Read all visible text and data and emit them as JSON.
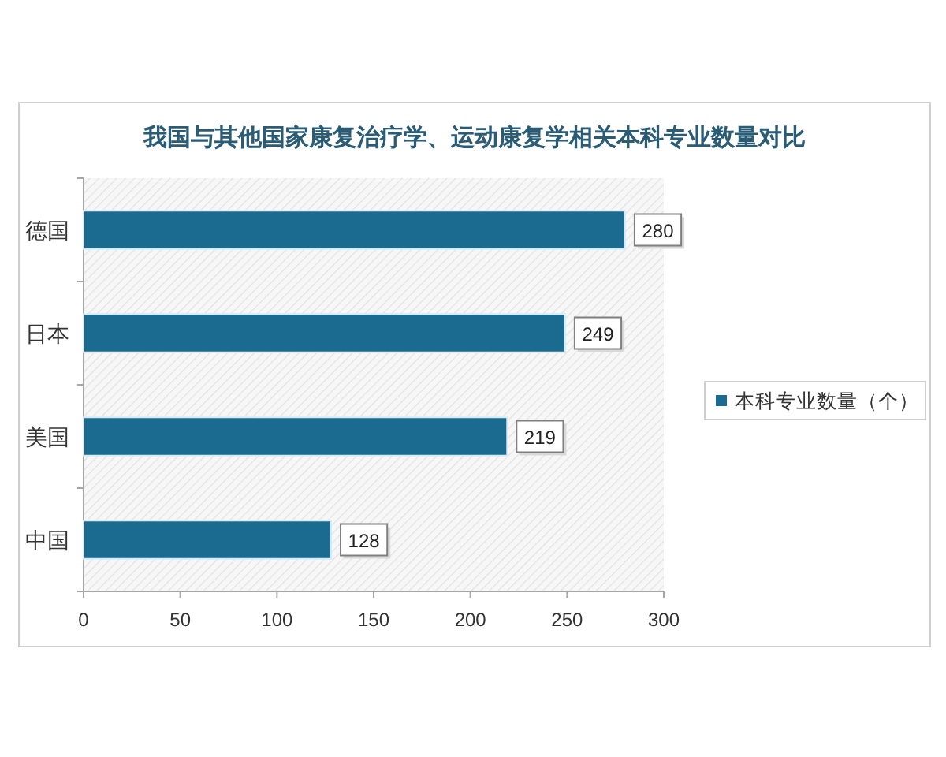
{
  "chart_data": {
    "type": "bar",
    "orientation": "horizontal",
    "title": "我国与其他国家康复治疗学、运动康复学相关本科专业数量对比",
    "categories": [
      "德国",
      "日本",
      "美国",
      "中国"
    ],
    "series": [
      {
        "name": "本科专业数量（个）",
        "color": "#1b6a8f",
        "values": [
          280,
          249,
          219,
          128
        ]
      }
    ],
    "xlim": [
      0,
      300
    ],
    "xticks": [
      0,
      50,
      100,
      150,
      200,
      250,
      300
    ],
    "data_labels": true,
    "legend": "right"
  }
}
